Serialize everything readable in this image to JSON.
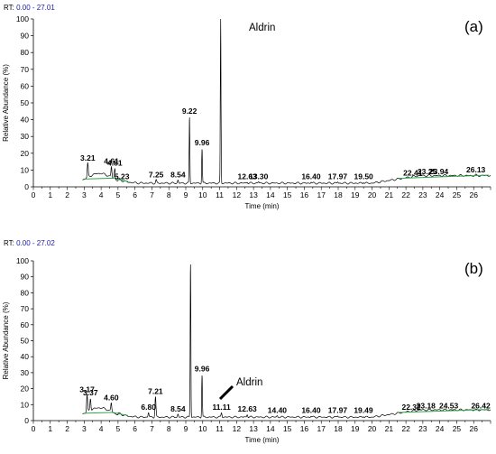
{
  "chart_data": [
    {
      "type": "line",
      "panel": "(a)",
      "rt_prefix": "RT:",
      "rt_range": "0.00 - 27.01",
      "xlabel": "Time (min)",
      "ylabel": "Relative Abundance (%)",
      "xlim": [
        0,
        27
      ],
      "ylim": [
        0,
        100
      ],
      "x_ticks": [
        "0",
        "1",
        "2",
        "3",
        "4",
        "5",
        "6",
        "7",
        "8",
        "9",
        "10",
        "11",
        "12",
        "13",
        "14",
        "15",
        "16",
        "17",
        "18",
        "19",
        "20",
        "21",
        "22",
        "23",
        "24",
        "25",
        "26"
      ],
      "y_ticks": [
        "0",
        "10",
        "20",
        "30",
        "40",
        "50",
        "60",
        "70",
        "80",
        "90",
        "100"
      ],
      "annotation": "Aldrin",
      "peaks": [
        {
          "rt": 3.21,
          "label": "3.21",
          "height": 14
        },
        {
          "rt": 4.61,
          "label": "4.61",
          "height": 12
        },
        {
          "rt": 4.81,
          "label": "4.81",
          "height": 11
        },
        {
          "rt": 5.23,
          "label": "5.23",
          "height": 3
        },
        {
          "rt": 7.25,
          "label": "7.25",
          "height": 4
        },
        {
          "rt": 8.54,
          "label": "8.54",
          "height": 4
        },
        {
          "rt": 9.22,
          "label": "9.22",
          "height": 42
        },
        {
          "rt": 9.96,
          "label": "9.96",
          "height": 23
        },
        {
          "rt": 11.06,
          "label": "",
          "height": 100
        },
        {
          "rt": 12.63,
          "label": "12.63",
          "height": 3
        },
        {
          "rt": 13.3,
          "label": "13.30",
          "height": 3
        },
        {
          "rt": 16.4,
          "label": "16.40",
          "height": 3
        },
        {
          "rt": 17.97,
          "label": "17.97",
          "height": 3
        },
        {
          "rt": 19.5,
          "label": "19.50",
          "height": 3
        },
        {
          "rt": 22.41,
          "label": "22.41",
          "height": 5
        },
        {
          "rt": 23.25,
          "label": "23.25",
          "height": 6
        },
        {
          "rt": 23.94,
          "label": "23.94",
          "height": 6
        },
        {
          "rt": 26.13,
          "label": "26.13",
          "height": 7
        }
      ]
    },
    {
      "type": "line",
      "panel": "(b)",
      "rt_prefix": "RT:",
      "rt_range": "0.00 - 27.02",
      "xlabel": "Time (min)",
      "ylabel": "Relative Abundance (%)",
      "xlim": [
        0,
        27
      ],
      "ylim": [
        0,
        100
      ],
      "x_ticks": [
        "0",
        "1",
        "2",
        "3",
        "4",
        "5",
        "6",
        "7",
        "8",
        "9",
        "10",
        "11",
        "12",
        "13",
        "14",
        "15",
        "16",
        "17",
        "18",
        "19",
        "20",
        "21",
        "22",
        "23",
        "24",
        "25",
        "26"
      ],
      "y_ticks": [
        "0",
        "10",
        "20",
        "30",
        "40",
        "50",
        "60",
        "70",
        "80",
        "90",
        "100"
      ],
      "annotation": "Aldrin",
      "peaks": [
        {
          "rt": 3.17,
          "label": "3.17",
          "height": 16
        },
        {
          "rt": 3.37,
          "label": "3.37",
          "height": 14
        },
        {
          "rt": 4.6,
          "label": "4.60",
          "height": 11
        },
        {
          "rt": 6.8,
          "label": "6.80",
          "height": 5
        },
        {
          "rt": 7.21,
          "label": "7.21",
          "height": 15
        },
        {
          "rt": 8.54,
          "label": "8.54",
          "height": 4
        },
        {
          "rt": 9.28,
          "label": "",
          "height": 100
        },
        {
          "rt": 9.96,
          "label": "9.96",
          "height": 29
        },
        {
          "rt": 11.11,
          "label": "11.11",
          "height": 5
        },
        {
          "rt": 12.63,
          "label": "12.63",
          "height": 4
        },
        {
          "rt": 14.4,
          "label": "14.40",
          "height": 3
        },
        {
          "rt": 16.4,
          "label": "16.40",
          "height": 3
        },
        {
          "rt": 17.97,
          "label": "17.97",
          "height": 3
        },
        {
          "rt": 19.49,
          "label": "19.49",
          "height": 3
        },
        {
          "rt": 22.32,
          "label": "22.32",
          "height": 5
        },
        {
          "rt": 23.18,
          "label": "23.18",
          "height": 6
        },
        {
          "rt": 24.53,
          "label": "24.53",
          "height": 6
        },
        {
          "rt": 26.42,
          "label": "26.42",
          "height": 6
        }
      ]
    }
  ]
}
